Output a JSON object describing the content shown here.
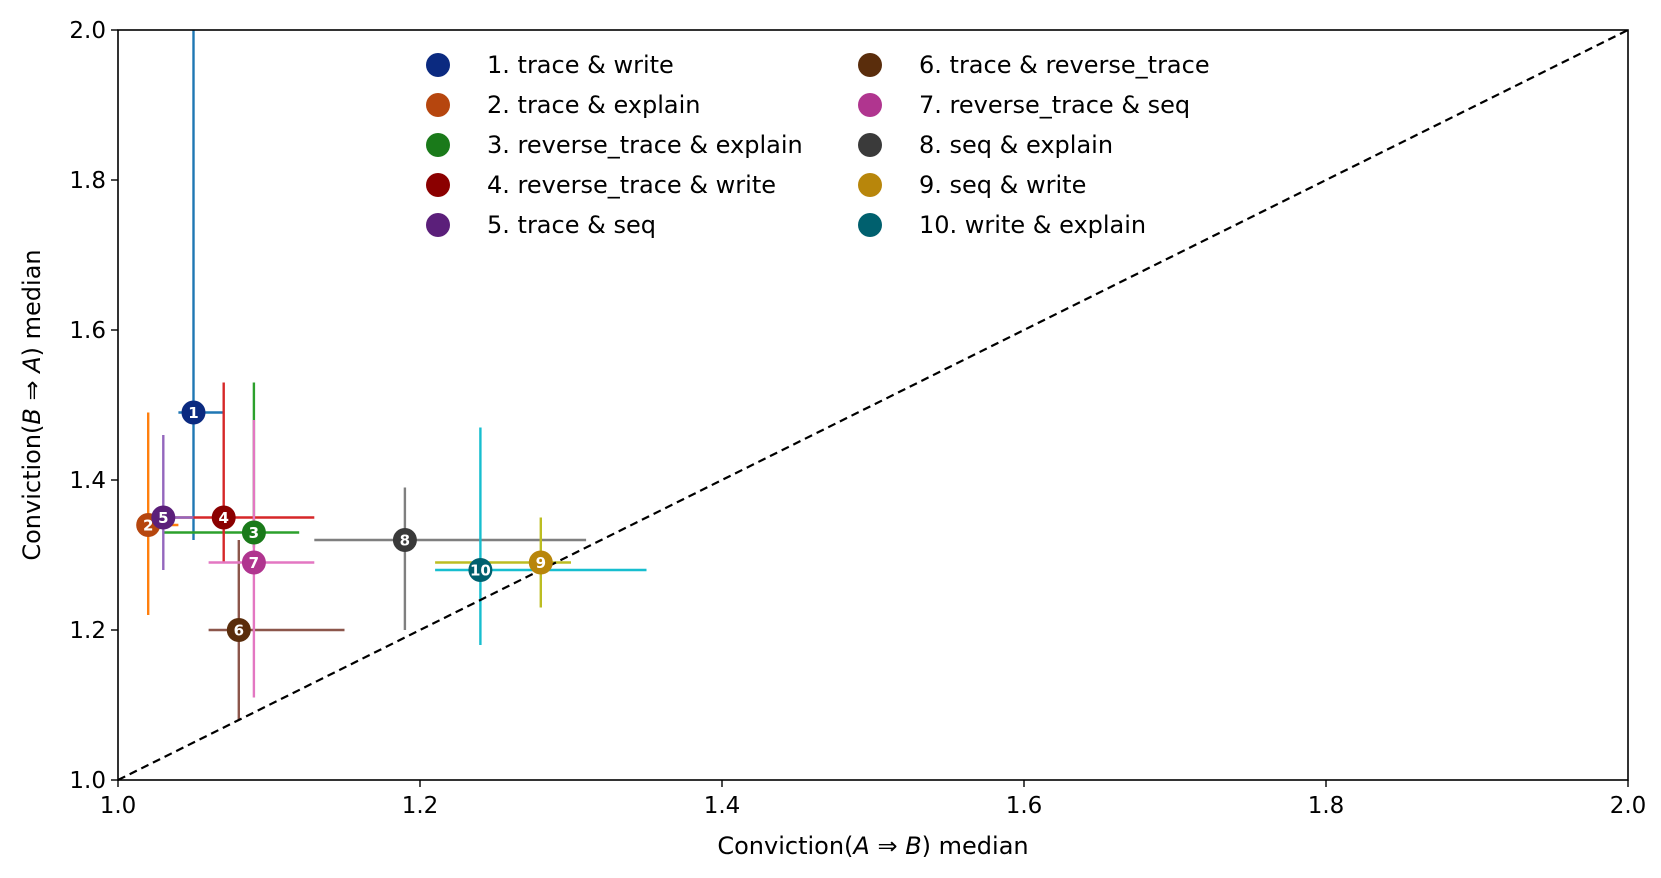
{
  "chart_data": {
    "type": "scatter",
    "xlabel_parts": [
      "Conviction(",
      "A",
      " ⇒ ",
      "B",
      ") median"
    ],
    "ylabel_parts": [
      "Conviction(",
      "B",
      " ⇒ ",
      "A",
      ") median"
    ],
    "xlim": [
      1.0,
      2.0
    ],
    "ylim": [
      1.0,
      2.0
    ],
    "x_ticks": [
      "1.0",
      "1.2",
      "1.4",
      "1.6",
      "1.8",
      "2.0"
    ],
    "y_ticks": [
      "1.0",
      "1.2",
      "1.4",
      "1.6",
      "1.8",
      "2.0"
    ],
    "grid": false,
    "legend_position": "top-center",
    "reference_line": "y = x (dashed)",
    "series": [
      {
        "id": "1",
        "name": "1. trace & write",
        "x": 1.05,
        "y": 1.49,
        "x_err": [
          1.04,
          1.07
        ],
        "y_err": [
          1.32,
          2.0
        ],
        "marker_color": "#0b2a80",
        "bar_color": "#1f77b4"
      },
      {
        "id": "2",
        "name": "2. trace & explain",
        "x": 1.02,
        "y": 1.34,
        "x_err": [
          1.02,
          1.04
        ],
        "y_err": [
          1.22,
          1.49
        ],
        "marker_color": "#b6460e",
        "bar_color": "#ff7f0e"
      },
      {
        "id": "3",
        "name": "3. reverse_trace & explain",
        "x": 1.09,
        "y": 1.33,
        "x_err": [
          1.03,
          1.12
        ],
        "y_err": [
          1.31,
          1.53
        ],
        "marker_color": "#1a7a1a",
        "bar_color": "#2ca02c"
      },
      {
        "id": "4",
        "name": "4. reverse_trace & write",
        "x": 1.07,
        "y": 1.35,
        "x_err": [
          1.03,
          1.13
        ],
        "y_err": [
          1.29,
          1.53
        ],
        "marker_color": "#8b0000",
        "bar_color": "#d62728"
      },
      {
        "id": "5",
        "name": "5. trace & seq",
        "x": 1.03,
        "y": 1.35,
        "x_err": [
          1.02,
          1.05
        ],
        "y_err": [
          1.28,
          1.46
        ],
        "marker_color": "#5b1f7a",
        "bar_color": "#9467bd"
      },
      {
        "id": "6",
        "name": "6. trace & reverse_trace",
        "x": 1.08,
        "y": 1.2,
        "x_err": [
          1.06,
          1.15
        ],
        "y_err": [
          1.08,
          1.32
        ],
        "marker_color": "#5a2d0c",
        "bar_color": "#8c564b"
      },
      {
        "id": "7",
        "name": "7. reverse_trace & seq",
        "x": 1.09,
        "y": 1.29,
        "x_err": [
          1.06,
          1.13
        ],
        "y_err": [
          1.11,
          1.48
        ],
        "marker_color": "#b0358f",
        "bar_color": "#e377c2"
      },
      {
        "id": "8",
        "name": "8. seq & explain",
        "x": 1.19,
        "y": 1.32,
        "x_err": [
          1.13,
          1.31
        ],
        "y_err": [
          1.2,
          1.39
        ],
        "marker_color": "#3a3a3a",
        "bar_color": "#7f7f7f"
      },
      {
        "id": "9",
        "name": "9. seq & write",
        "x": 1.28,
        "y": 1.29,
        "x_err": [
          1.21,
          1.3
        ],
        "y_err": [
          1.23,
          1.35
        ],
        "marker_color": "#b8860b",
        "bar_color": "#bcbd22"
      },
      {
        "id": "10",
        "name": "10. write & explain",
        "x": 1.24,
        "y": 1.28,
        "x_err": [
          1.21,
          1.35
        ],
        "y_err": [
          1.18,
          1.47
        ],
        "marker_color": "#00606e",
        "bar_color": "#17becf"
      }
    ]
  }
}
